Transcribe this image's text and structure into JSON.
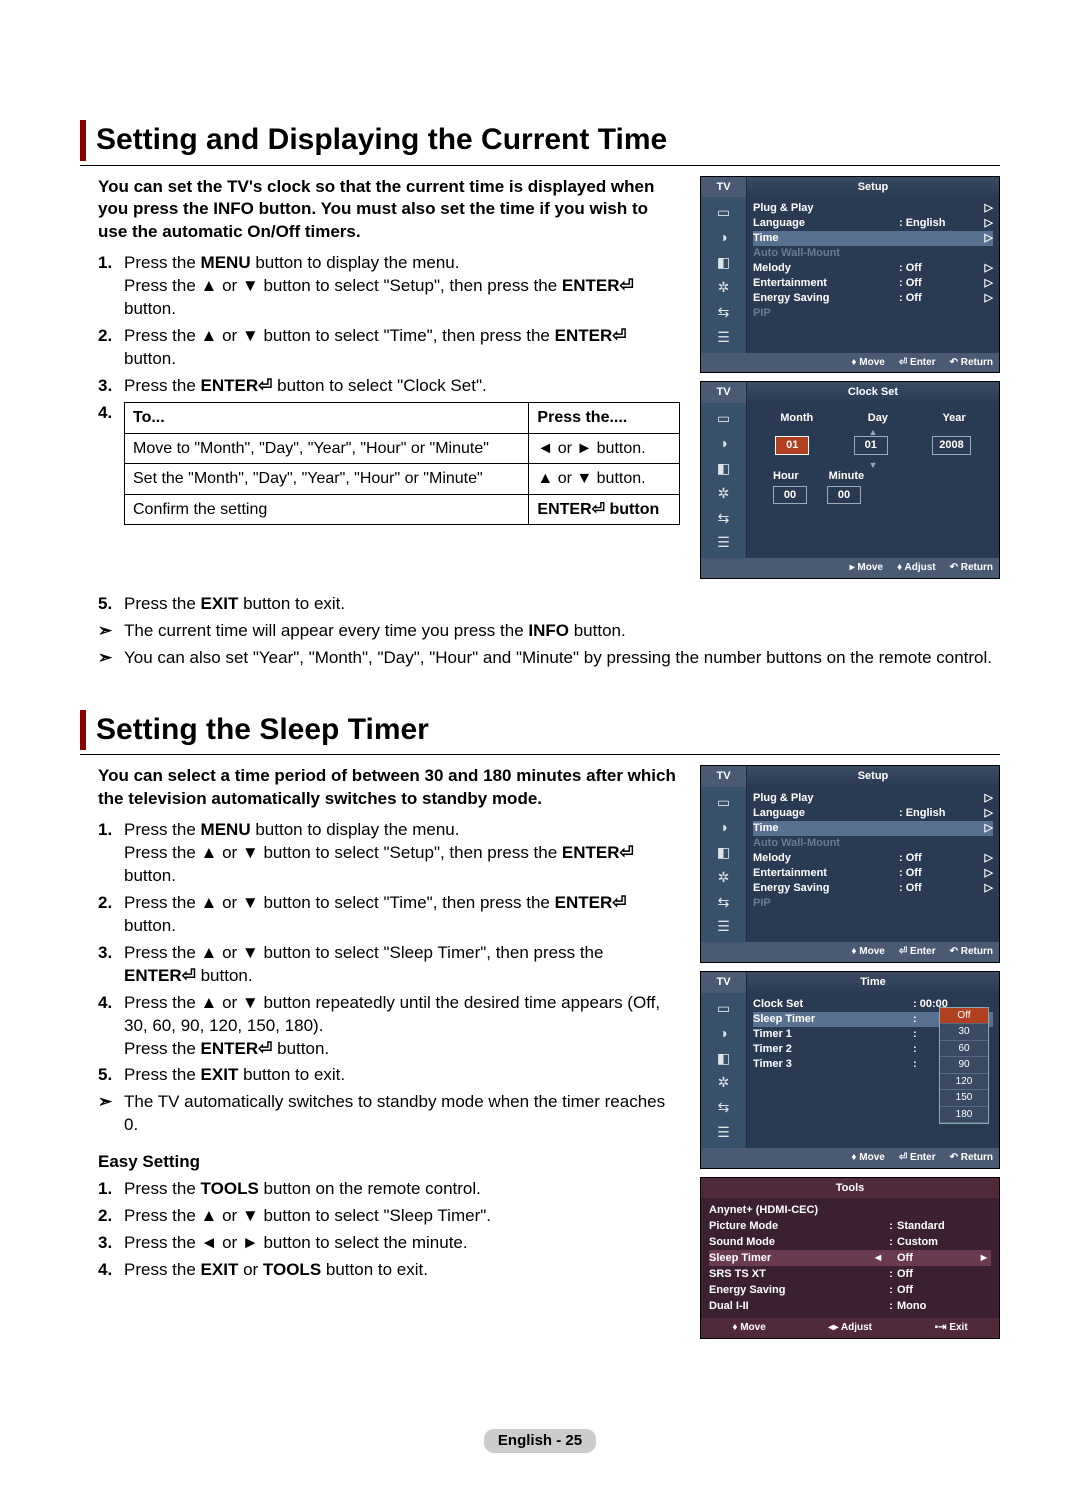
{
  "section1": {
    "title": "Setting and Displaying the Current Time",
    "intro": "You can set the TV's clock so that the current time is displayed when you press the INFO button. You must also set the time if you wish to use the automatic On/Off timers.",
    "step1a": "Press the ",
    "step1b": " button to display the menu.",
    "step1c": "Press the ▲ or ▼ button to select \"Setup\", then press the ",
    "step1d": " button.",
    "step2a": "Press the ▲ or ▼ button to select \"Time\", then press the ",
    "step2b": " button.",
    "step3a": "Press the ",
    "step3b": " button to select \"Clock Set\".",
    "menu": "MENU",
    "enter": "ENTER",
    "exit": "EXIT",
    "info": "INFO",
    "table": {
      "h1": "To...",
      "h2": "Press the....",
      "r1c1": "Move to \"Month\", \"Day\", \"Year\", \"Hour\" or \"Minute\"",
      "r1c2": "◄ or ► button.",
      "r2c1": "Set the \"Month\", \"Day\", \"Year\", \"Hour\" or \"Minute\"",
      "r2c2": "▲ or ▼ button.",
      "r3c1": "Confirm the setting",
      "r3c2": "ENTER⏎ button"
    },
    "step5a": "Press the ",
    "step5b": " button to exit.",
    "note1a": "The current time will appear every time you press the ",
    "note1b": " button.",
    "note2": "You can also set \"Year\", \"Month\", \"Day\", \"Hour\" and \"Minute\" by pressing the number buttons on the remote control."
  },
  "section2": {
    "title": "Setting the Sleep Timer",
    "intro": "You can select a time period of between 30 and 180 minutes after which the television automatically switches to standby mode.",
    "step1a": "Press the ",
    "step1b": " button to display the menu.",
    "step1c": "Press the ▲ or ▼ button to select \"Setup\", then press the ",
    "step1d": " button.",
    "step2a": "Press the ▲ or ▼ button to select \"Time\", then press the ",
    "step2b": " button.",
    "step3a": "Press the ▲ or ▼ button to select \"Sleep Timer\", then press the ",
    "step3b": " button.",
    "step4a": "Press the ▲ or ▼ button repeatedly until the desired time appears (Off, 30, 60, 90, 120, 150, 180).",
    "step4b": "Press the ",
    "step4c": " button.",
    "step5a": "Press the ",
    "step5b": " button to exit.",
    "note1": "The TV automatically switches to standby mode when the timer reaches 0.",
    "easy_title": "Easy Setting",
    "e1a": "Press the ",
    "e1m": "TOOLS",
    "e1b": " button on the remote control.",
    "e2": "Press the ▲ or ▼ button to select \"Sleep Timer\".",
    "e3": "Press the ◄ or ► button to select the minute.",
    "e4a": "Press the ",
    "e4m1": "EXIT",
    "e4or": " or ",
    "e4m2": "TOOLS",
    "e4b": " button to exit."
  },
  "osd_setup": {
    "tv": "TV",
    "title": "Setup",
    "items": [
      {
        "lab": "Plug & Play",
        "val": "",
        "arr": "▷"
      },
      {
        "lab": "Language",
        "val": ": English",
        "arr": "▷"
      },
      {
        "lab": "Time",
        "val": "",
        "arr": "▷",
        "sel": true
      },
      {
        "lab": "Auto Wall-Mount",
        "val": "",
        "arr": "",
        "dim": true
      },
      {
        "lab": "Melody",
        "val": ": Off",
        "arr": "▷"
      },
      {
        "lab": "Entertainment",
        "val": ": Off",
        "arr": "▷"
      },
      {
        "lab": "Energy Saving",
        "val": ": Off",
        "arr": "▷"
      },
      {
        "lab": "PIP",
        "val": "",
        "arr": "",
        "dim": true
      }
    ],
    "footer": {
      "move": "Move",
      "enter": "Enter",
      "return": "Return"
    }
  },
  "osd_clock": {
    "title": "Clock Set",
    "labels1": [
      "Month",
      "Day",
      "Year"
    ],
    "vals1": [
      "01",
      "01",
      "2008"
    ],
    "labels2": [
      "Hour",
      "Minute"
    ],
    "vals2": [
      "00",
      "00"
    ],
    "footer": {
      "move": "Move",
      "adjust": "Adjust",
      "return": "Return"
    }
  },
  "osd_time": {
    "title": "Time",
    "rows": [
      {
        "lab": "Clock Set",
        "val": ": 00:00"
      },
      {
        "lab": "Sleep Timer",
        "val": ":",
        "sel": true
      },
      {
        "lab": "Timer 1",
        "val": ":"
      },
      {
        "lab": "Timer 2",
        "val": ":"
      },
      {
        "lab": "Timer 3",
        "val": ":"
      }
    ],
    "options": [
      "Off",
      "30",
      "60",
      "90",
      "120",
      "150",
      "180"
    ],
    "footer": {
      "move": "Move",
      "enter": "Enter",
      "return": "Return"
    }
  },
  "osd_tools": {
    "title": "Tools",
    "rows": [
      {
        "lab": "Anynet+ (HDMI-CEC)",
        "val": ""
      },
      {
        "lab": "Picture Mode",
        "col": ":",
        "val": "Standard"
      },
      {
        "lab": "Sound Mode",
        "col": ":",
        "val": "Custom"
      },
      {
        "lab": "Sleep Timer",
        "col": "",
        "val": "Off",
        "sel": true,
        "la": "◄",
        "ra": "►"
      },
      {
        "lab": "SRS TS XT",
        "col": ":",
        "val": "Off"
      },
      {
        "lab": "Energy Saving",
        "col": ":",
        "val": "Off"
      },
      {
        "lab": "Dual I-II",
        "col": ":",
        "val": "Mono"
      }
    ],
    "footer": {
      "move": "Move",
      "adjust": "Adjust",
      "exit": "Exit"
    }
  },
  "footer": "English - 25"
}
